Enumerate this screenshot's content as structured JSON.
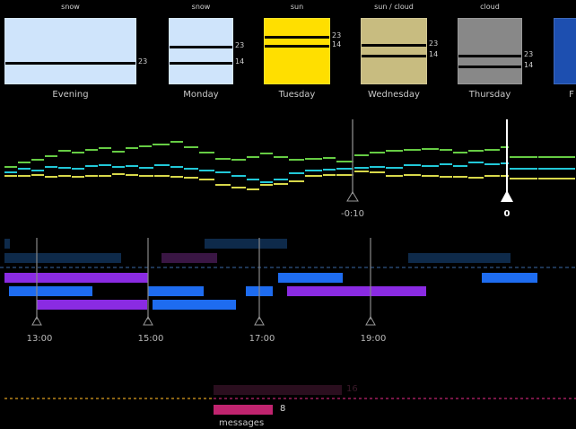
{
  "weather": {
    "days": [
      {
        "name": "Evening",
        "condition": "snow",
        "high": "",
        "low": "23",
        "color": "#cfe4fb"
      },
      {
        "name": "Monday",
        "condition": "snow",
        "high": "23",
        "low": "14",
        "color": "#cfe4fb"
      },
      {
        "name": "Tuesday",
        "condition": "sun",
        "high": "23",
        "low": "14",
        "color": "#ffdf00"
      },
      {
        "name": "Wednesday",
        "condition": "sun / cloud",
        "high": "23",
        "low": "14",
        "color": "#c8bc80"
      },
      {
        "name": "Thursday",
        "condition": "cloud",
        "high": "23",
        "low": "14",
        "color": "#888888"
      },
      {
        "name": "F",
        "condition": "",
        "high": "",
        "low": "",
        "color": "#1d4fb0"
      }
    ]
  },
  "timeline": {
    "offset_label": "-0:10",
    "now_label": "0",
    "series_colors": [
      "#66cc44",
      "#22c8d8",
      "#d8d84a"
    ]
  },
  "calendar": {
    "times": [
      "13:00",
      "15:00",
      "17:00",
      "19:00"
    ],
    "colors": {
      "violet": "#8a2be2",
      "blue": "#1e6cf0",
      "dark_navy": "#0e2a4a",
      "dark_purple": "#3a1644"
    }
  },
  "messages": {
    "faded_count": "16",
    "count": "8",
    "label": "messages",
    "color": "#c0246f"
  }
}
